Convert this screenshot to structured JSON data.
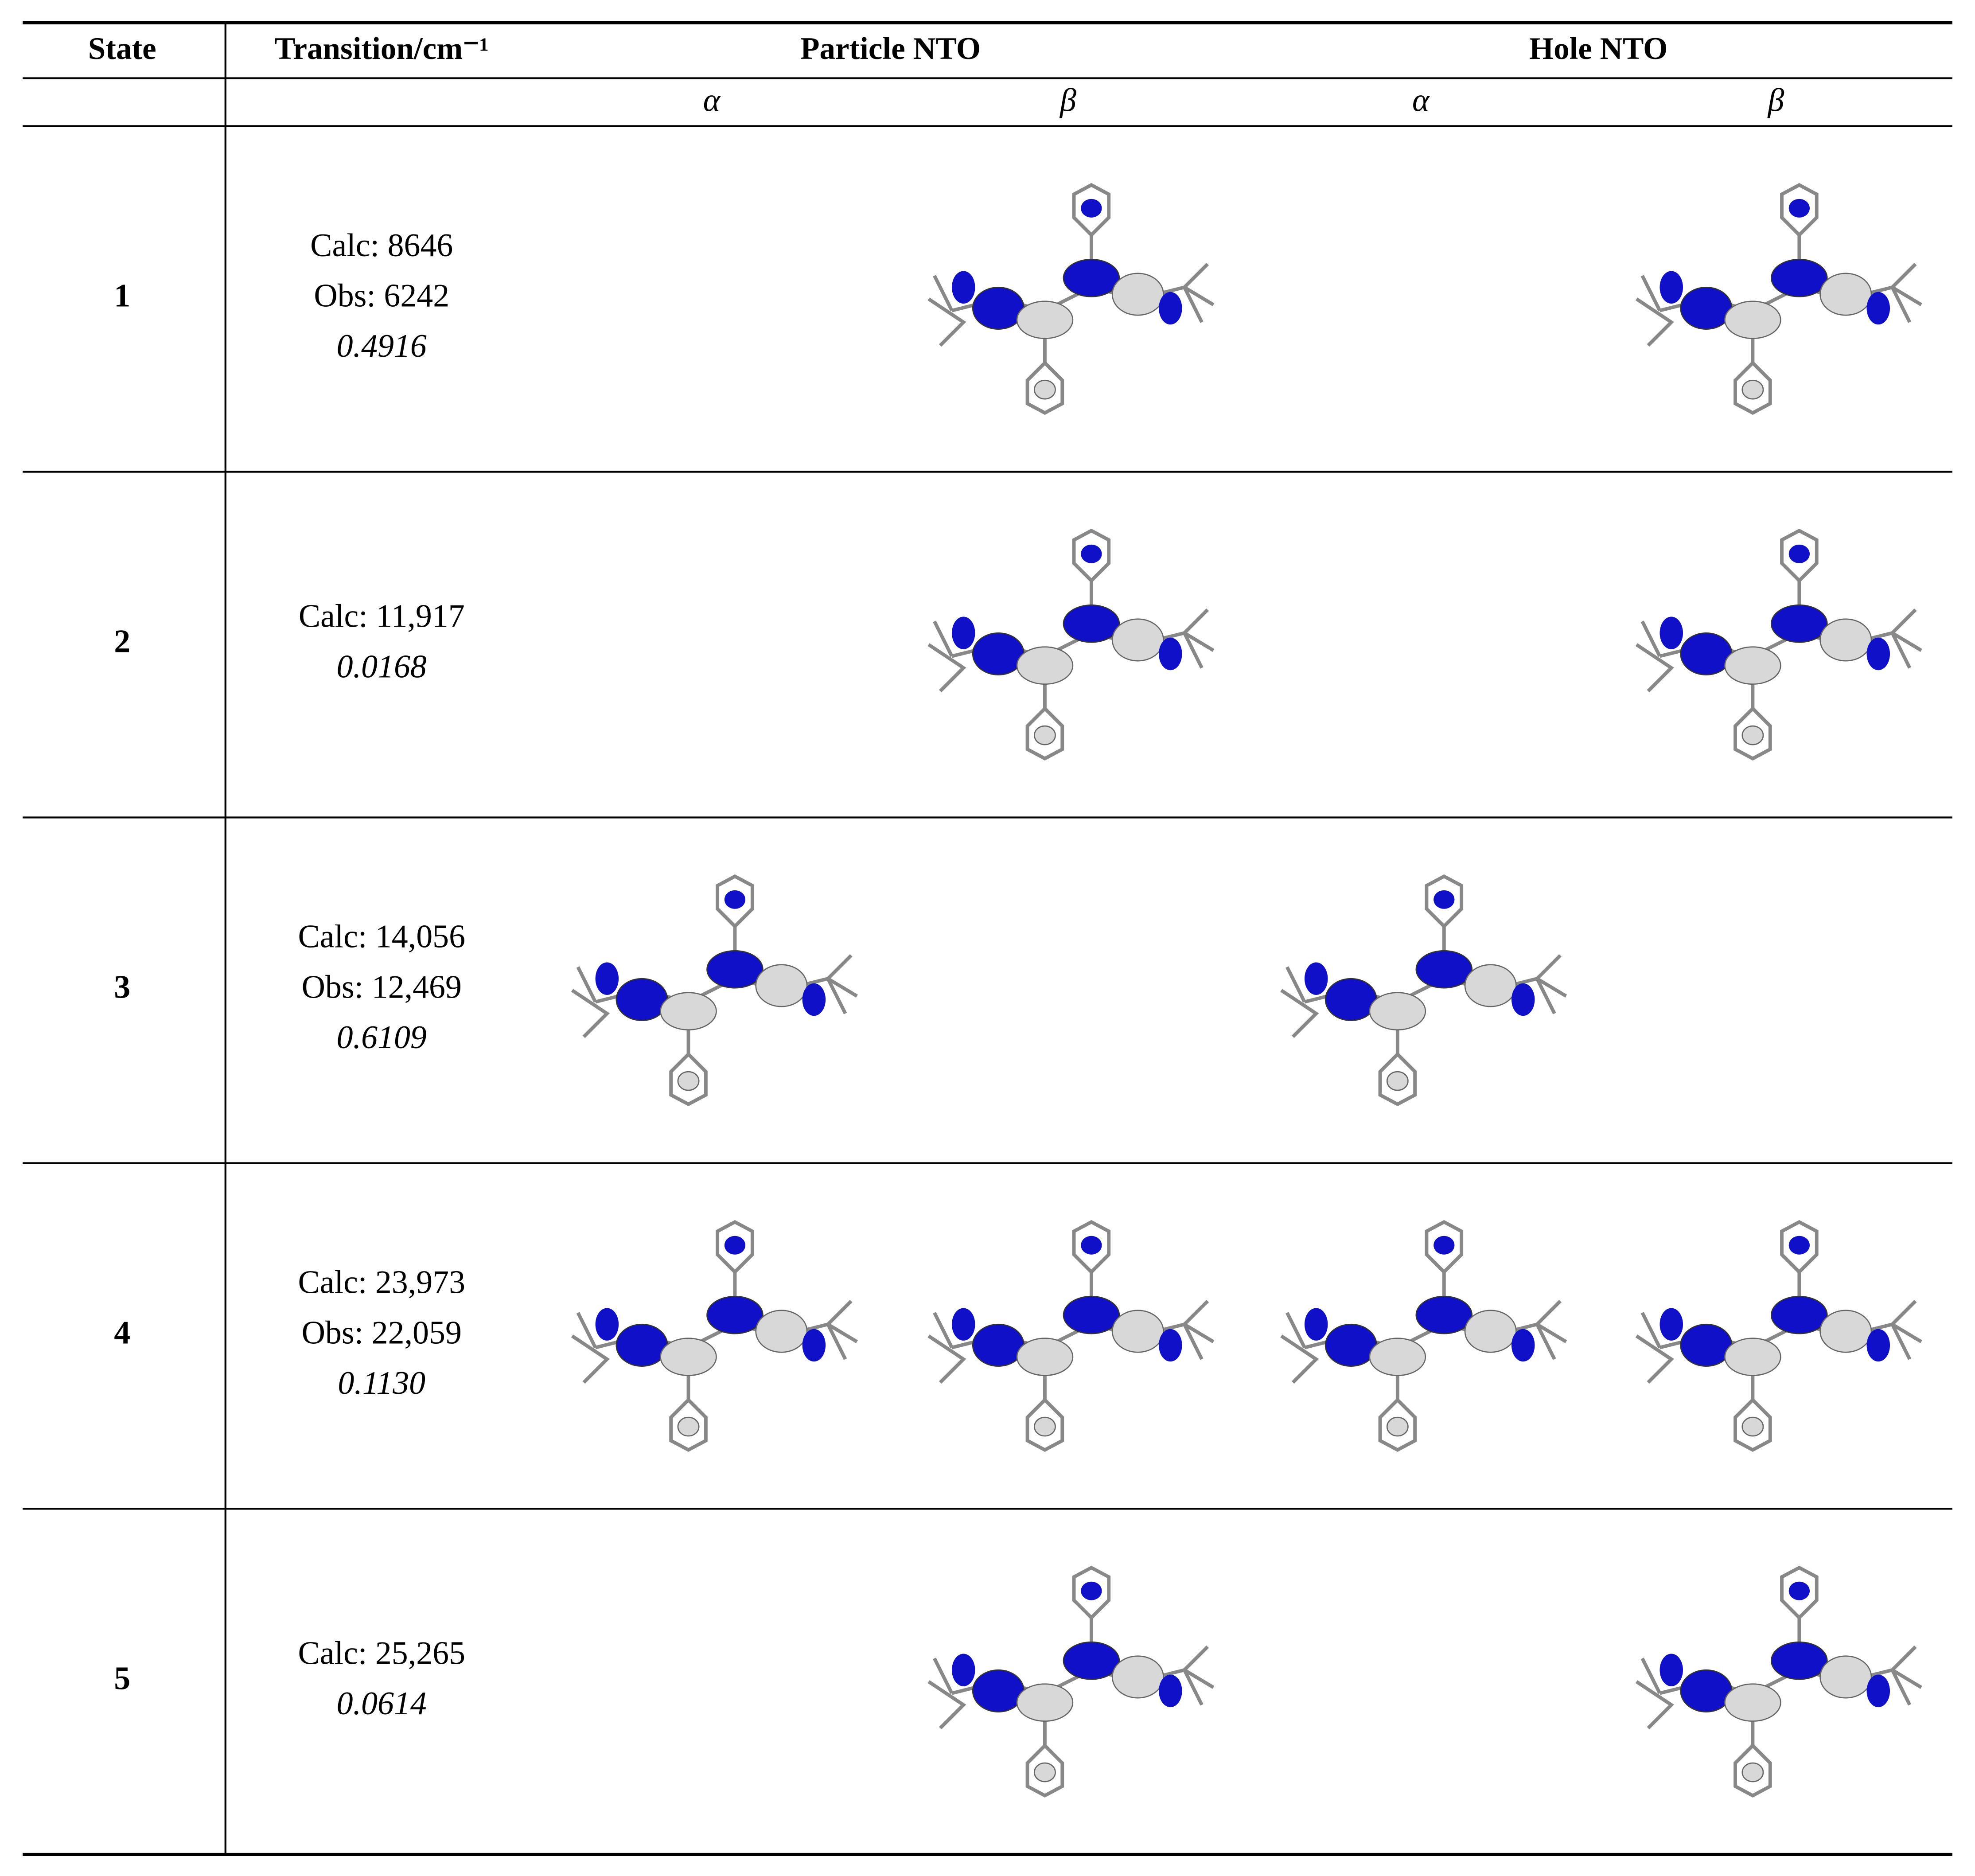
{
  "header": {
    "state": "State",
    "transition": "Transition/cm⁻¹",
    "particle": "Particle NTO",
    "hole": "Hole NTO"
  },
  "subheader": [
    "α",
    "β",
    "α",
    "β"
  ],
  "rows": [
    {
      "state": "1",
      "lines": [
        "Calc: 8646",
        "Obs: 6242"
      ],
      "oscillator": "0.4916"
    },
    {
      "state": "2",
      "lines": [
        "Calc: 11,917"
      ],
      "oscillator": "0.0168"
    },
    {
      "state": "3",
      "lines": [
        "Calc: 14,056",
        "Obs: 12,469"
      ],
      "oscillator": "0.6109"
    },
    {
      "state": "4",
      "lines": [
        "Calc: 23,973",
        "Obs: 22,059"
      ],
      "oscillator": "0.1130"
    },
    {
      "state": "5",
      "lines": [
        "Calc: 25,265"
      ],
      "oscillator": "0.0614"
    }
  ]
}
